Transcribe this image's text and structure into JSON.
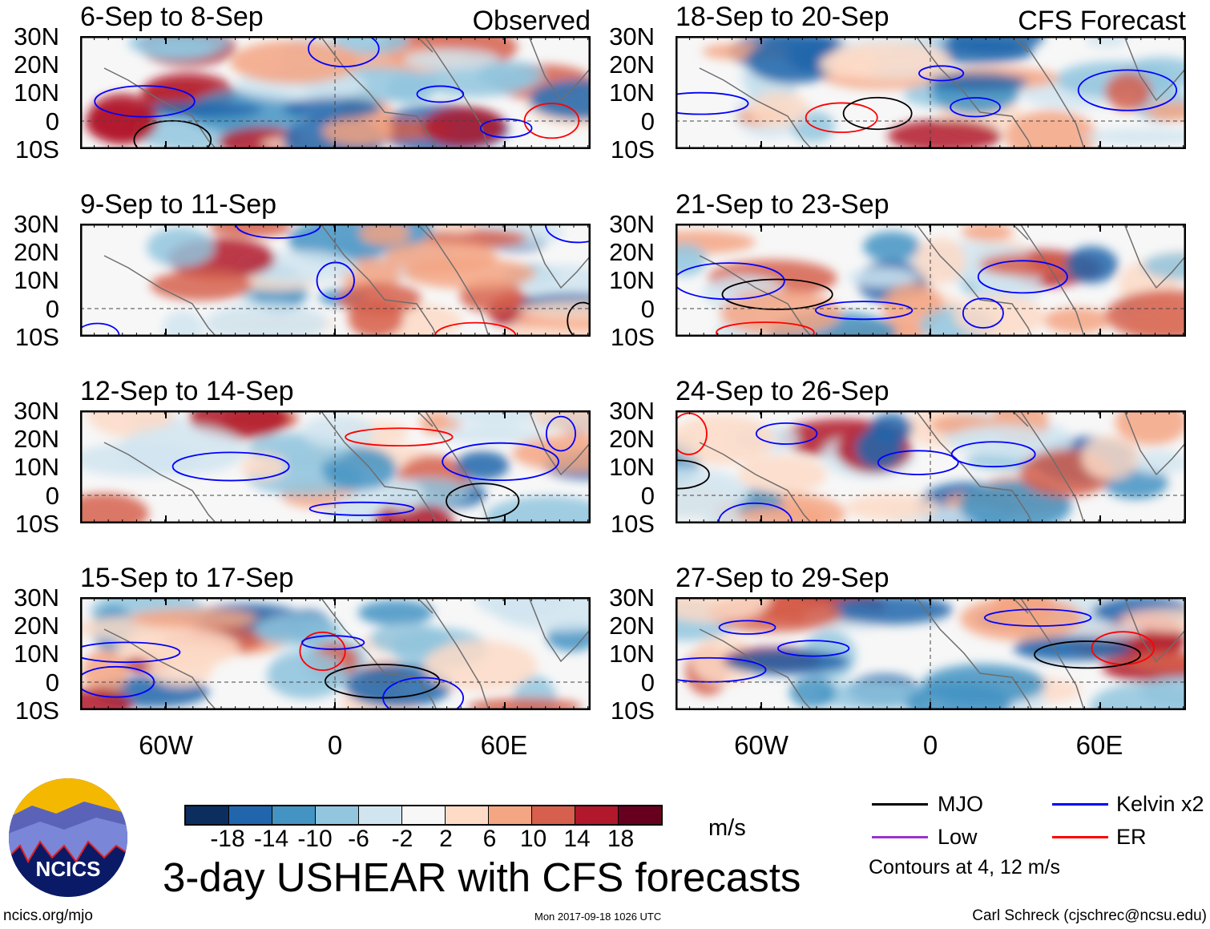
{
  "figure_title": "3-day USHEAR with CFS forecasts",
  "column_labels": {
    "left": "Observed",
    "right": "CFS Forecast"
  },
  "panels": [
    {
      "title": "6-Sep to 8-Sep",
      "column": "left"
    },
    {
      "title": "9-Sep to 11-Sep",
      "column": "left"
    },
    {
      "title": "12-Sep to 14-Sep",
      "column": "left"
    },
    {
      "title": "15-Sep to 17-Sep",
      "column": "left"
    },
    {
      "title": "18-Sep to 20-Sep",
      "column": "right"
    },
    {
      "title": "21-Sep to 23-Sep",
      "column": "right"
    },
    {
      "title": "24-Sep to 26-Sep",
      "column": "right"
    },
    {
      "title": "27-Sep to 29-Sep",
      "column": "right"
    }
  ],
  "lat_ticks": [
    "30N",
    "20N",
    "10N",
    "0",
    "10S"
  ],
  "lon_ticks": [
    "60W",
    "0",
    "60E"
  ],
  "colorbar": {
    "labels": [
      "-18",
      "-14",
      "-10",
      "-6",
      "-2",
      "2",
      "6",
      "10",
      "14",
      "18"
    ],
    "colors": [
      "#0b2e5e",
      "#2166ac",
      "#4393c3",
      "#92c5de",
      "#d1e5f0",
      "#f7f7f7",
      "#fddbc7",
      "#f4a582",
      "#d6604d",
      "#b2182b",
      "#67001f"
    ],
    "units": "m/s"
  },
  "legend": {
    "items": [
      {
        "label": "MJO",
        "color": "#000000"
      },
      {
        "label": "Kelvin x2",
        "color": "#0000ff"
      },
      {
        "label": "Low",
        "color": "#9933cc"
      },
      {
        "label": "ER",
        "color": "#ff0000"
      }
    ],
    "note": "Contours at 4, 12 m/s"
  },
  "logo_text": "NCICS",
  "footer": {
    "url": "ncics.org/mjo",
    "timestamp": "Mon 2017-09-18 1026 UTC",
    "credit": "Carl Schreck (cjschrec@ncsu.edu)"
  }
}
